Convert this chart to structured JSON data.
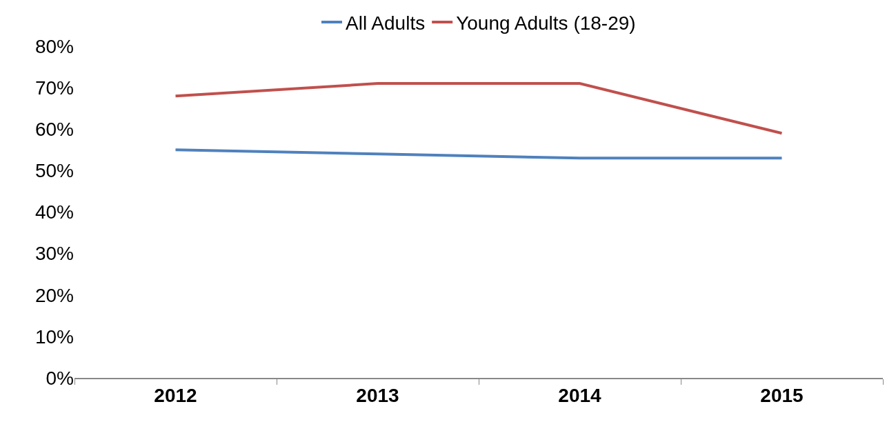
{
  "chart_data": {
    "type": "line",
    "categories": [
      "2012",
      "2013",
      "2014",
      "2015"
    ],
    "series": [
      {
        "name": "All Adults",
        "color": "#4f81bd",
        "values": [
          55,
          54,
          53,
          53
        ]
      },
      {
        "name": "Young Adults (18-29)",
        "color": "#c0504d",
        "values": [
          68,
          71,
          71,
          59
        ]
      }
    ],
    "ylim": [
      0,
      80
    ],
    "yticks": [
      {
        "value": 0,
        "label": "0%"
      },
      {
        "value": 10,
        "label": "10%"
      },
      {
        "value": 20,
        "label": "20%"
      },
      {
        "value": 30,
        "label": "30%"
      },
      {
        "value": 40,
        "label": "40%"
      },
      {
        "value": 50,
        "label": "50%"
      },
      {
        "value": 60,
        "label": "60%"
      },
      {
        "value": 70,
        "label": "70%"
      },
      {
        "value": 80,
        "label": "80%"
      }
    ],
    "grid": false,
    "legend": "top",
    "marker": "none",
    "line_style": "solid"
  }
}
